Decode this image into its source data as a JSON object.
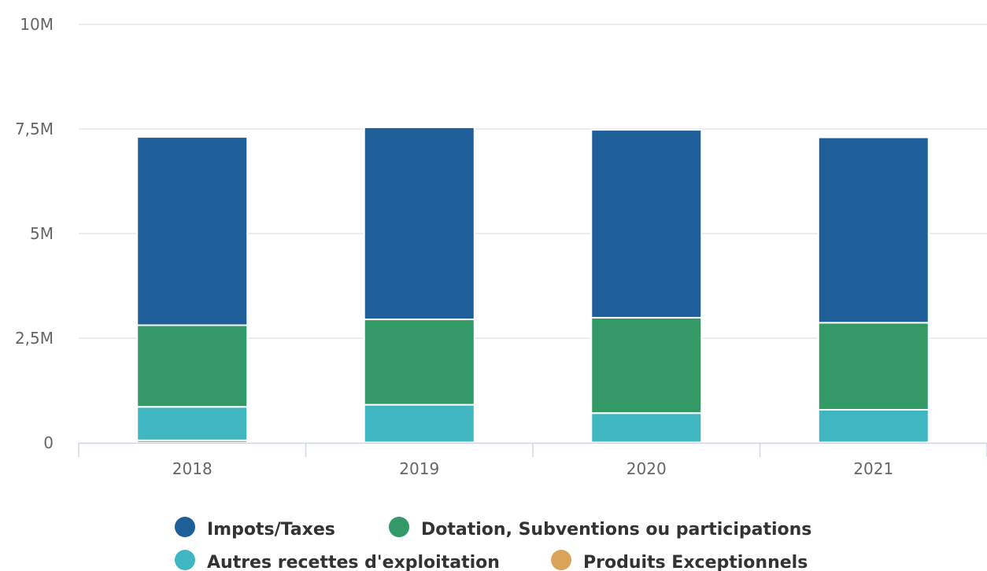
{
  "chart_data": {
    "type": "bar",
    "stacked": true,
    "categories": [
      "2018",
      "2019",
      "2020",
      "2021"
    ],
    "series": [
      {
        "name": "Produits Exceptionnels",
        "color": "#d9a45a",
        "values": [
          60000,
          10000,
          10000,
          10000
        ]
      },
      {
        "name": "Autres recettes d'exploitation",
        "color": "#40b7c0",
        "values": [
          800000,
          900000,
          700000,
          780000
        ]
      },
      {
        "name": "Dotation, Subventions ou participations",
        "color": "#339966",
        "values": [
          1950000,
          2040000,
          2280000,
          2080000
        ]
      },
      {
        "name": "Impots/Taxes",
        "color": "#1f5f99",
        "values": [
          4500000,
          4590000,
          4490000,
          4430000
        ]
      }
    ],
    "ylim": [
      0,
      10000000
    ],
    "yticks": [
      0,
      2500000,
      5000000,
      7500000,
      10000000
    ],
    "ytick_labels": [
      "0",
      "2,5M",
      "5M",
      "7,5M",
      "10M"
    ],
    "grid": true,
    "legend": {
      "position": "bottom",
      "order": [
        "Impots/Taxes",
        "Dotation, Subventions ou participations",
        "Autres recettes d'exploitation",
        "Produits Exceptionnels"
      ]
    },
    "title": "",
    "xlabel": "",
    "ylabel": ""
  }
}
